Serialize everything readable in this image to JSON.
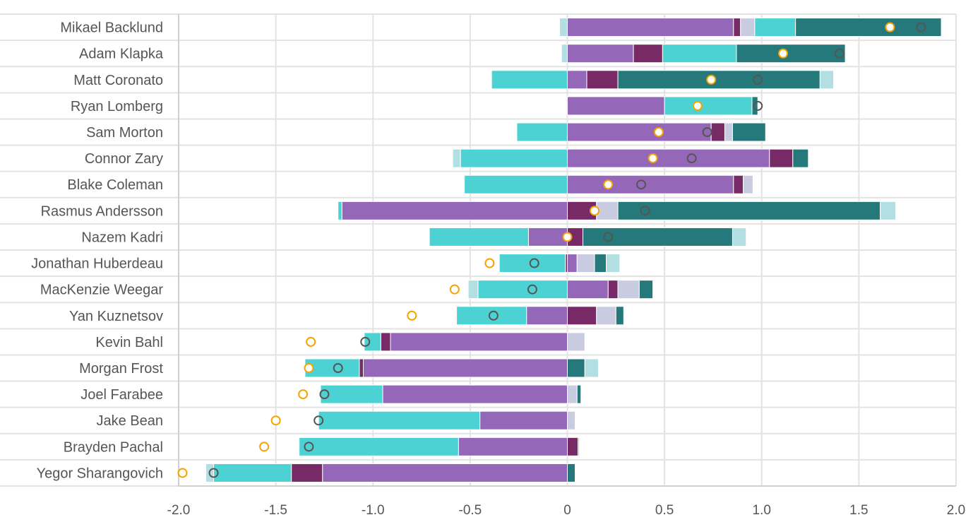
{
  "chart_data": {
    "type": "bar",
    "orientation": "horizontal",
    "stacked": "diverging",
    "xlim": [
      -2.0,
      2.0
    ],
    "x_ticks": [
      "-2.0",
      "-1.5",
      "-1.0",
      "-0.5",
      "0",
      "0.5",
      "1.0",
      "1.5",
      "2.0"
    ],
    "x_tick_values": [
      -2.0,
      -1.5,
      -1.0,
      -0.5,
      0,
      0.5,
      1.0,
      1.5,
      2.0
    ],
    "grid": true,
    "segment_order": [
      "purple",
      "magenta",
      "lavender",
      "cyan",
      "teal",
      "lightteal"
    ],
    "colors": {
      "purple": "#9467b8",
      "magenta": "#772a66",
      "lavender": "#c9cbe0",
      "cyan": "#4dd2d4",
      "teal": "#26797b",
      "lightteal": "#b3dfe3",
      "marker_orange": "#f5a300",
      "marker_gray": "#555555"
    },
    "rows": [
      {
        "name": "Mikael Backlund",
        "segments": {
          "purple": 0.855,
          "magenta": 0.036,
          "lavender": 0.073,
          "cyan": 0.21,
          "teal": 0.75,
          "lightteal": -0.04
        },
        "orange": 1.66,
        "gray": 1.82
      },
      {
        "name": "Adam Klapka",
        "segments": {
          "purple": 0.34,
          "magenta": 0.15,
          "cyan": 0.38,
          "teal": 0.56,
          "lightteal": -0.03
        },
        "orange": 1.11,
        "gray": 1.4
      },
      {
        "name": "Matt Coronato",
        "segments": {
          "purple": 0.1,
          "magenta": 0.16,
          "cyan": -0.39,
          "teal": 1.04,
          "lightteal": 0.07
        },
        "orange": 0.74,
        "gray": 0.98
      },
      {
        "name": "Ryan Lomberg",
        "segments": {
          "purple": 0.5,
          "cyan": 0.45,
          "teal": 0.03
        },
        "orange": 0.67,
        "gray": 0.98
      },
      {
        "name": "Sam Morton",
        "segments": {
          "purple": 0.74,
          "magenta": 0.07,
          "lavender": 0.04,
          "cyan": -0.26,
          "teal": 0.17
        },
        "orange": 0.47,
        "gray": 0.72
      },
      {
        "name": "Connor Zary",
        "segments": {
          "purple": 1.04,
          "magenta": 0.12,
          "cyan": -0.55,
          "teal": 0.08,
          "lightteal": -0.04
        },
        "orange": 0.44,
        "gray": 0.64
      },
      {
        "name": "Blake Coleman",
        "segments": {
          "purple": 0.855,
          "magenta": 0.05,
          "lavender": 0.05,
          "cyan": -0.53
        },
        "orange": 0.21,
        "gray": 0.38
      },
      {
        "name": "Rasmus Andersson",
        "segments": {
          "purple": -1.16,
          "magenta": 0.15,
          "lavender": 0.11,
          "cyan": -0.02,
          "teal": 1.35,
          "lightteal": 0.08
        },
        "orange": 0.14,
        "gray": 0.4
      },
      {
        "name": "Nazem Kadri",
        "segments": {
          "purple": -0.2,
          "magenta": 0.08,
          "cyan": -0.51,
          "teal": 0.77,
          "lightteal": 0.07
        },
        "orange": 0.0,
        "gray": 0.21
      },
      {
        "name": "Jonathan Huberdeau",
        "segments": {
          "purple": 0.05,
          "magenta": -0.01,
          "lavender": 0.09,
          "cyan": -0.34,
          "teal": 0.06,
          "lightteal": 0.07
        },
        "orange": -0.4,
        "gray": -0.17
      },
      {
        "name": "MacKenzie Weegar",
        "segments": {
          "purple": 0.21,
          "magenta": 0.05,
          "lavender": 0.11,
          "cyan": -0.46,
          "teal": 0.07,
          "lightteal": -0.05
        },
        "orange": -0.58,
        "gray": -0.18
      },
      {
        "name": "Yan Kuznetsov",
        "segments": {
          "purple": -0.21,
          "magenta": 0.15,
          "lavender": 0.1,
          "cyan": -0.36,
          "teal": 0.04
        },
        "orange": -0.8,
        "gray": -0.38
      },
      {
        "name": "Kevin Bahl",
        "segments": {
          "purple": -0.91,
          "magenta": -0.05,
          "lavender": 0.09,
          "cyan": -0.085
        },
        "orange": -1.32,
        "gray": -1.04
      },
      {
        "name": "Morgan Frost",
        "segments": {
          "purple": -1.05,
          "magenta": -0.02,
          "cyan": -0.28,
          "teal": 0.09,
          "lightteal": 0.07
        },
        "orange": -1.33,
        "gray": -1.18
      },
      {
        "name": "Joel Farabee",
        "segments": {
          "purple": -0.95,
          "lavender": 0.05,
          "cyan": -0.32,
          "teal": 0.02
        },
        "orange": -1.36,
        "gray": -1.25
      },
      {
        "name": "Jake Bean",
        "segments": {
          "purple": -0.45,
          "lavender": 0.04,
          "cyan": -0.83
        },
        "orange": -1.5,
        "gray": -1.28
      },
      {
        "name": "Brayden Pachal",
        "segments": {
          "purple": -0.56,
          "magenta": 0.055,
          "cyan": -0.82,
          "teal": 0.005
        },
        "orange": -1.56,
        "gray": -1.33
      },
      {
        "name": "Yegor Sharangovich",
        "segments": {
          "purple": -1.26,
          "magenta": -0.16,
          "cyan": -0.4,
          "teal": 0.04,
          "lightteal": -0.04
        },
        "orange": -1.98,
        "gray": -1.82
      }
    ]
  }
}
